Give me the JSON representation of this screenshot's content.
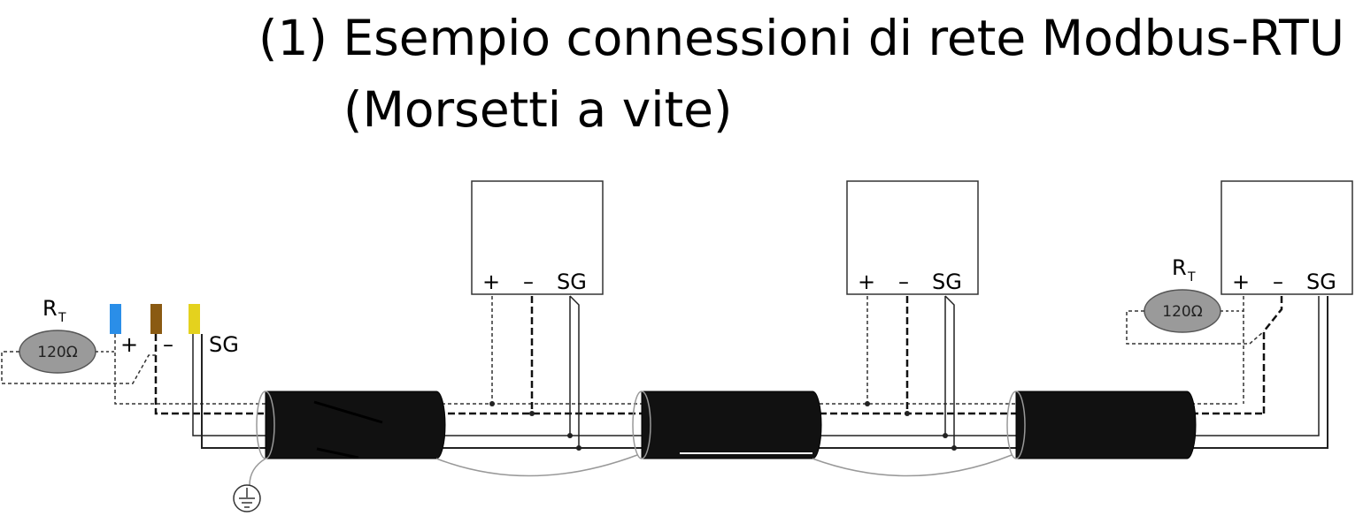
{
  "title": {
    "line1": "(1) Esempio connessioni di rete Modbus-RTU",
    "line2": "(Morsetti a vite)"
  },
  "terminals": {
    "plus": "+",
    "minus": "–",
    "sg": "SG"
  },
  "resistor": {
    "symbol": "R",
    "subscript": "T",
    "value": "120Ω"
  },
  "devices_count": 3,
  "wire_colors": {
    "plus": "#2a8ee8",
    "minus": "#8a5a12",
    "sg": "#e4d21e",
    "cable_jacket": "#111111",
    "resistor_fill": "#9a9a9a"
  },
  "icons": {
    "ground": "ground-icon"
  }
}
